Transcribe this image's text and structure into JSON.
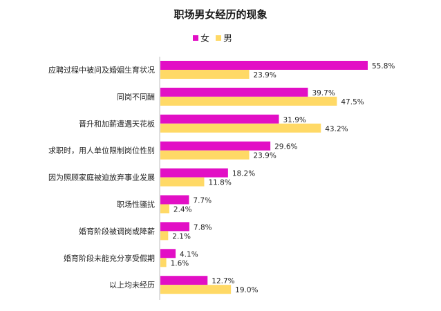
{
  "chart_data": {
    "type": "bar",
    "orientation": "horizontal",
    "title": "职场男女经历的现象",
    "legend_position": "top-center",
    "grid": false,
    "xlim": [
      0,
      60
    ],
    "categories": [
      "应聘过程中被问及婚姻生育状况",
      "同岗不同酬",
      "晋升和加薪遭遇天花板",
      "求职时，用人单位限制岗位性别",
      "因为照顾家庭被迫放弃事业发展",
      "职场性骚扰",
      "婚育阶段被调岗或降薪",
      "婚育阶段未能充分享受假期",
      "以上均未经历"
    ],
    "series": [
      {
        "name": "女",
        "color": "#e20fc5",
        "values": [
          55.8,
          39.7,
          31.9,
          29.6,
          18.2,
          7.7,
          7.8,
          4.1,
          12.7
        ],
        "labels": [
          "55.8%",
          "39.7%",
          "31.9%",
          "29.6%",
          "18.2%",
          "7.7%",
          "7.8%",
          "4.1%",
          "12.7%"
        ]
      },
      {
        "name": "男",
        "color": "#ffd966",
        "values": [
          23.9,
          47.5,
          43.2,
          23.9,
          11.8,
          2.4,
          2.1,
          1.6,
          19.0
        ],
        "labels": [
          "23.9%",
          "47.5%",
          "43.2%",
          "23.9%",
          "11.8%",
          "2.4%",
          "2.1%",
          "1.6%",
          "19.0%"
        ]
      }
    ]
  }
}
